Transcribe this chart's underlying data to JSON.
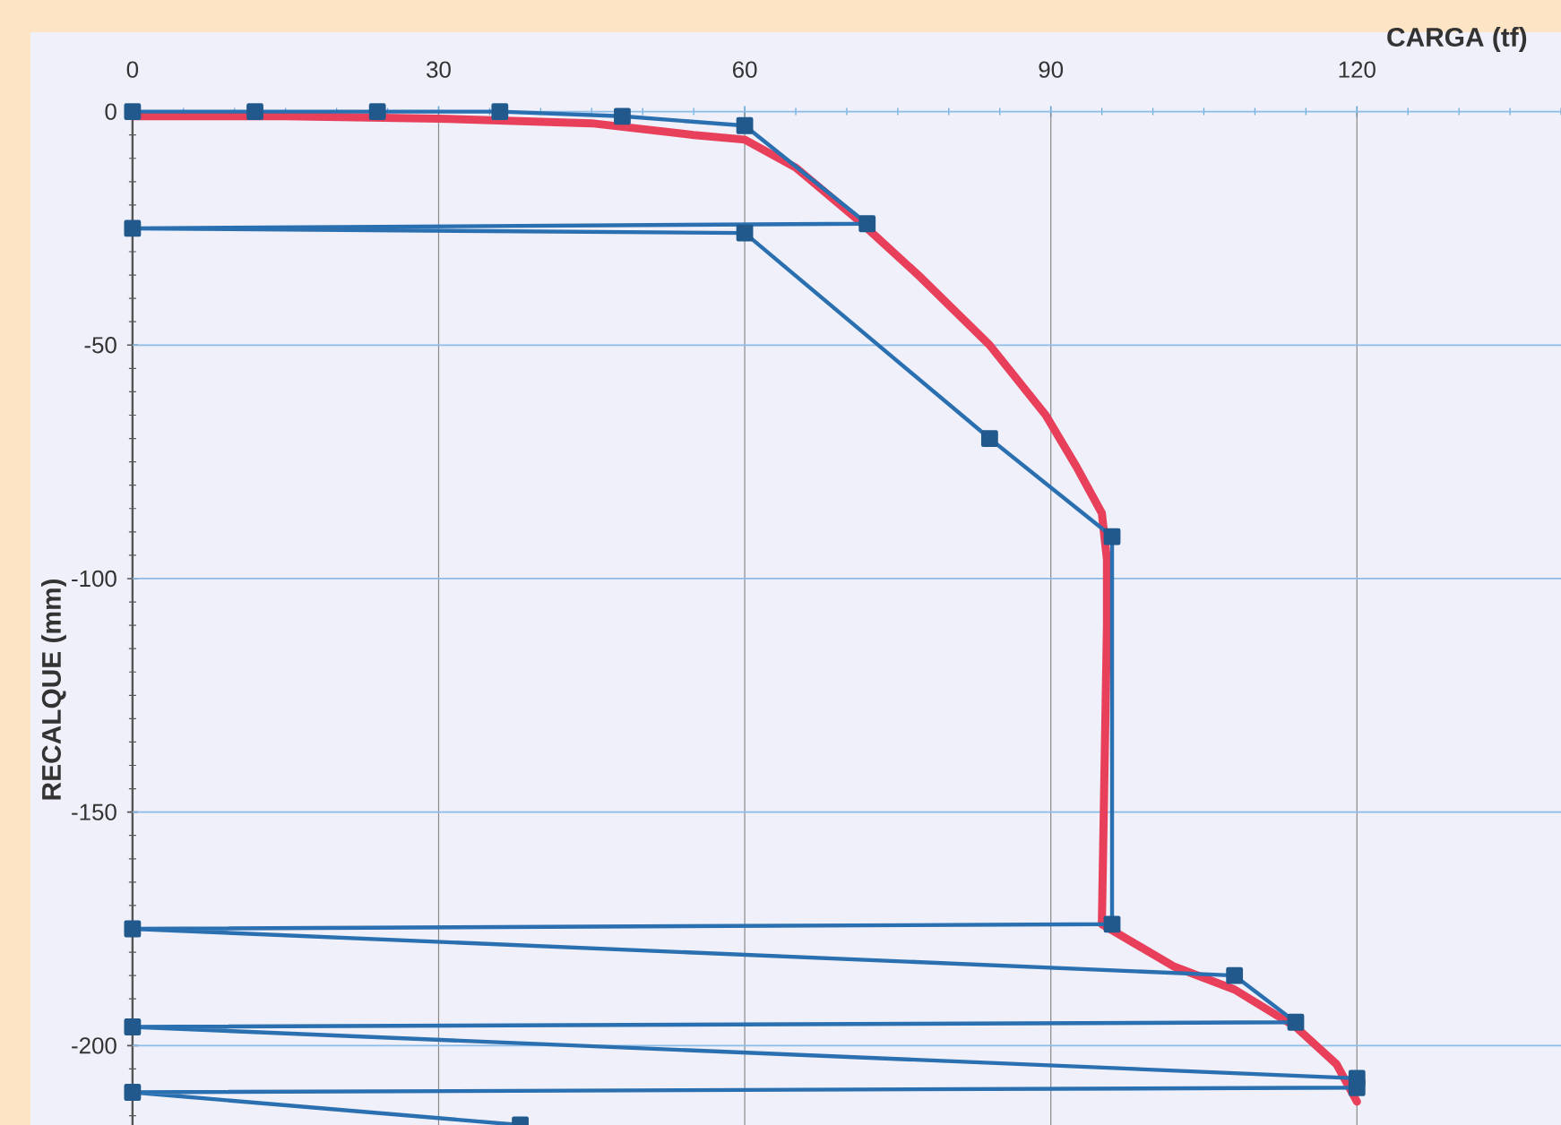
{
  "chart_data": {
    "type": "line",
    "xlabel": "CARGA (tf)",
    "ylabel": "RECALQUE (mm)",
    "xlim": [
      -10,
      140
    ],
    "ylim": [
      -217,
      17
    ],
    "xticks": [
      0,
      30,
      60,
      90,
      120
    ],
    "yticks": [
      0,
      -50,
      -100,
      -150,
      -200
    ],
    "grid": true,
    "series": [
      {
        "color": "#e8405a",
        "marker": "none",
        "x": [
          0,
          15,
          30,
          45,
          55,
          60,
          65,
          71,
          77,
          84,
          89.5,
          92.5,
          95,
          95.5,
          95.5,
          95,
          102,
          108,
          114,
          118,
          120
        ],
        "values": [
          -1,
          -1,
          -1.5,
          -2.5,
          -5,
          -6,
          -12,
          -23,
          -35,
          -50,
          -65,
          -76,
          -86,
          -96,
          -110,
          -174,
          -183,
          -188,
          -196,
          -204,
          -212
        ]
      },
      {
        "color": "#2a6fb0",
        "marker": "square",
        "x": [
          0,
          12,
          24,
          36,
          48,
          60,
          72,
          0,
          60,
          84,
          96,
          96,
          0,
          108,
          114,
          0,
          120,
          120,
          0,
          38
        ],
        "values": [
          0,
          0,
          0,
          0,
          -1,
          -3,
          -24,
          -25,
          -26,
          -70,
          -91,
          -174,
          -175,
          -185,
          -195,
          -196,
          -207,
          -209,
          -210,
          -217
        ]
      }
    ]
  }
}
